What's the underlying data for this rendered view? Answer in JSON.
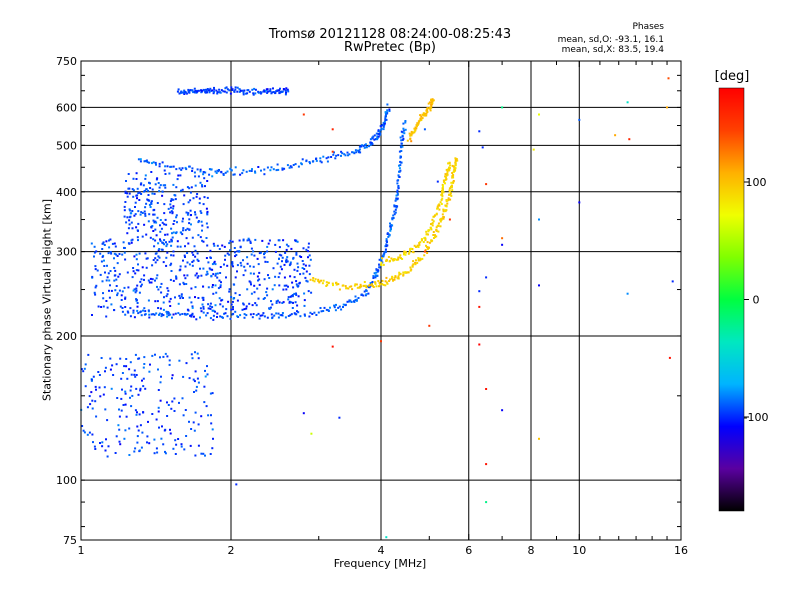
{
  "chart_data": {
    "type": "scatter",
    "title": "Tromsø 20121128 08:24:00-08:25:43",
    "subtitle": "RwPretec (Bp)",
    "stats": {
      "heading": "Phases",
      "line_o": "mean, sd,O: -93.1, 16.1",
      "line_x": "mean, sd,X:  83.5, 19.4"
    },
    "xlabel": "Frequency [MHz]",
    "ylabel": "Stationary phase Virtual Height [km]",
    "x_scale": "log",
    "y_scale": "log",
    "xlim": [
      1,
      16
    ],
    "ylim": [
      75,
      750
    ],
    "x_ticks": [
      {
        "value": 1,
        "label": "1"
      },
      {
        "value": 2,
        "label": "2"
      },
      {
        "value": 4,
        "label": "4"
      },
      {
        "value": 6,
        "label": "6"
      },
      {
        "value": 8,
        "label": "8"
      },
      {
        "value": 10,
        "label": "10"
      },
      {
        "value": 16,
        "label": "16"
      }
    ],
    "x_major_grid": [
      2,
      4,
      6,
      8,
      10
    ],
    "y_ticks": [
      {
        "value": 75,
        "label": "75"
      },
      {
        "value": 100,
        "label": "100"
      },
      {
        "value": 200,
        "label": "200"
      },
      {
        "value": 300,
        "label": "300"
      },
      {
        "value": 400,
        "label": "400"
      },
      {
        "value": 500,
        "label": "500"
      },
      {
        "value": 600,
        "label": "600"
      },
      {
        "value": 750,
        "label": "750"
      }
    ],
    "y_major_grid": [
      100,
      200,
      300,
      400,
      500,
      600
    ],
    "grid": true,
    "colorbar": {
      "label": "[deg]",
      "range": [
        -180,
        180
      ],
      "ticks": [
        {
          "value": 100,
          "label": "100"
        },
        {
          "value": 0,
          "label": "0"
        },
        {
          "value": -100,
          "label": "-100"
        }
      ],
      "colormap": [
        "#000000",
        "#5a00a0",
        "#0000ff",
        "#00b4ff",
        "#00e8c0",
        "#00ff40",
        "#80ff00",
        "#f0ff00",
        "#ffb000",
        "#ff4000",
        "#ff0000"
      ]
    },
    "traces": [
      {
        "name": "",
        "phase": -90,
        "spread": 0.012,
        "points": [
          [
            1.3,
            225
          ],
          [
            1.5,
            221
          ],
          [
            2.0,
            219
          ],
          [
            2.5,
            220
          ],
          [
            3.0,
            224
          ],
          [
            3.4,
            232
          ],
          [
            3.7,
            245
          ],
          [
            3.9,
            265
          ],
          [
            4.0,
            285
          ],
          [
            4.1,
            310
          ],
          [
            4.2,
            340
          ],
          [
            4.3,
            380
          ],
          [
            4.35,
            430
          ],
          [
            4.4,
            500
          ],
          [
            4.45,
            560
          ]
        ]
      },
      {
        "name": "",
        "phase": -90,
        "spread": 0.014,
        "points": [
          [
            1.3,
            470
          ],
          [
            1.5,
            450
          ],
          [
            1.8,
            440
          ],
          [
            2.0,
            438
          ],
          [
            2.4,
            445
          ],
          [
            2.8,
            460
          ],
          [
            3.2,
            472
          ],
          [
            3.6,
            488
          ],
          [
            3.8,
            505
          ],
          [
            3.95,
            525
          ],
          [
            4.05,
            560
          ],
          [
            4.15,
            600
          ]
        ]
      },
      {
        "name": "",
        "phase": -95,
        "spread": 0.012,
        "points": [
          [
            1.57,
            645
          ],
          [
            1.65,
            648
          ],
          [
            1.75,
            650
          ],
          [
            1.85,
            648
          ],
          [
            2.0,
            650
          ],
          [
            2.15,
            648
          ],
          [
            2.35,
            650
          ],
          [
            2.5,
            650
          ],
          [
            2.6,
            648
          ]
        ]
      },
      {
        "name": "",
        "phase": 95,
        "spread": 0.013,
        "points": [
          [
            2.9,
            262
          ],
          [
            3.2,
            256
          ],
          [
            3.6,
            254
          ],
          [
            3.9,
            256
          ],
          [
            4.2,
            262
          ],
          [
            4.5,
            272
          ],
          [
            4.8,
            290
          ],
          [
            5.1,
            320
          ],
          [
            5.3,
            350
          ],
          [
            5.45,
            380
          ],
          [
            5.55,
            410
          ],
          [
            5.6,
            440
          ],
          [
            5.65,
            470
          ]
        ]
      },
      {
        "name": "",
        "phase": 90,
        "spread": 0.012,
        "points": [
          [
            4.0,
            285
          ],
          [
            4.3,
            290
          ],
          [
            4.6,
            300
          ],
          [
            4.9,
            320
          ],
          [
            5.1,
            350
          ],
          [
            5.3,
            390
          ],
          [
            5.4,
            430
          ],
          [
            5.5,
            460
          ]
        ]
      },
      {
        "name": "",
        "phase": 100,
        "spread": 0.012,
        "points": [
          [
            4.55,
            520
          ],
          [
            4.7,
            545
          ],
          [
            4.85,
            575
          ],
          [
            5.0,
            600
          ],
          [
            5.1,
            625
          ]
        ]
      }
    ],
    "clouds": [
      {
        "name": "",
        "phase": -95,
        "xr": [
          1.05,
          2.9
        ],
        "yr": [
          218,
          320
        ],
        "n": 620
      },
      {
        "name": "",
        "phase": -95,
        "xr": [
          1.22,
          1.8
        ],
        "yr": [
          320,
          440
        ],
        "n": 240
      },
      {
        "name": "",
        "phase": -95,
        "xr": [
          1.0,
          1.85
        ],
        "yr": [
          112,
          185
        ],
        "n": 230
      }
    ],
    "scatter": [
      [
        4.6,
        510,
        120
      ],
      [
        4.9,
        540,
        -90
      ],
      [
        6.4,
        495,
        -100
      ],
      [
        7.0,
        600,
        -20
      ],
      [
        8.1,
        490,
        80
      ],
      [
        10.0,
        565,
        -90
      ],
      [
        12.5,
        615,
        -40
      ],
      [
        12.6,
        515,
        160
      ],
      [
        15.0,
        600,
        110
      ],
      [
        15.1,
        690,
        140
      ],
      [
        6.5,
        415,
        150
      ],
      [
        5.5,
        350,
        150
      ],
      [
        8.3,
        350,
        -80
      ],
      [
        10.0,
        380,
        -110
      ],
      [
        7.0,
        320,
        130
      ],
      [
        7.0,
        310,
        -110
      ],
      [
        6.5,
        265,
        -100
      ],
      [
        8.3,
        255,
        -110
      ],
      [
        12.5,
        245,
        -80
      ],
      [
        15.4,
        260,
        -100
      ],
      [
        6.3,
        230,
        170
      ],
      [
        5.0,
        210,
        150
      ],
      [
        6.3,
        192,
        180
      ],
      [
        3.2,
        190,
        170
      ],
      [
        4.0,
        195,
        150
      ],
      [
        6.5,
        155,
        170
      ],
      [
        7.0,
        140,
        -110
      ],
      [
        8.3,
        122,
        100
      ],
      [
        3.3,
        135,
        -100
      ],
      [
        2.8,
        138,
        -110
      ],
      [
        2.9,
        125,
        60
      ],
      [
        6.5,
        108,
        170
      ],
      [
        6.5,
        90,
        -20
      ],
      [
        2.05,
        98,
        -100
      ],
      [
        4.1,
        76,
        -40
      ],
      [
        15.2,
        180,
        170
      ],
      [
        3.2,
        485,
        150
      ],
      [
        2.8,
        580,
        150
      ],
      [
        5.2,
        420,
        -100
      ],
      [
        4.9,
        300,
        150
      ],
      [
        2.5,
        255,
        -100
      ],
      [
        3.2,
        540,
        160
      ],
      [
        6.3,
        248,
        -100
      ],
      [
        8.3,
        580,
        70
      ],
      [
        6.3,
        535,
        -100
      ],
      [
        11.8,
        525,
        110
      ]
    ]
  }
}
